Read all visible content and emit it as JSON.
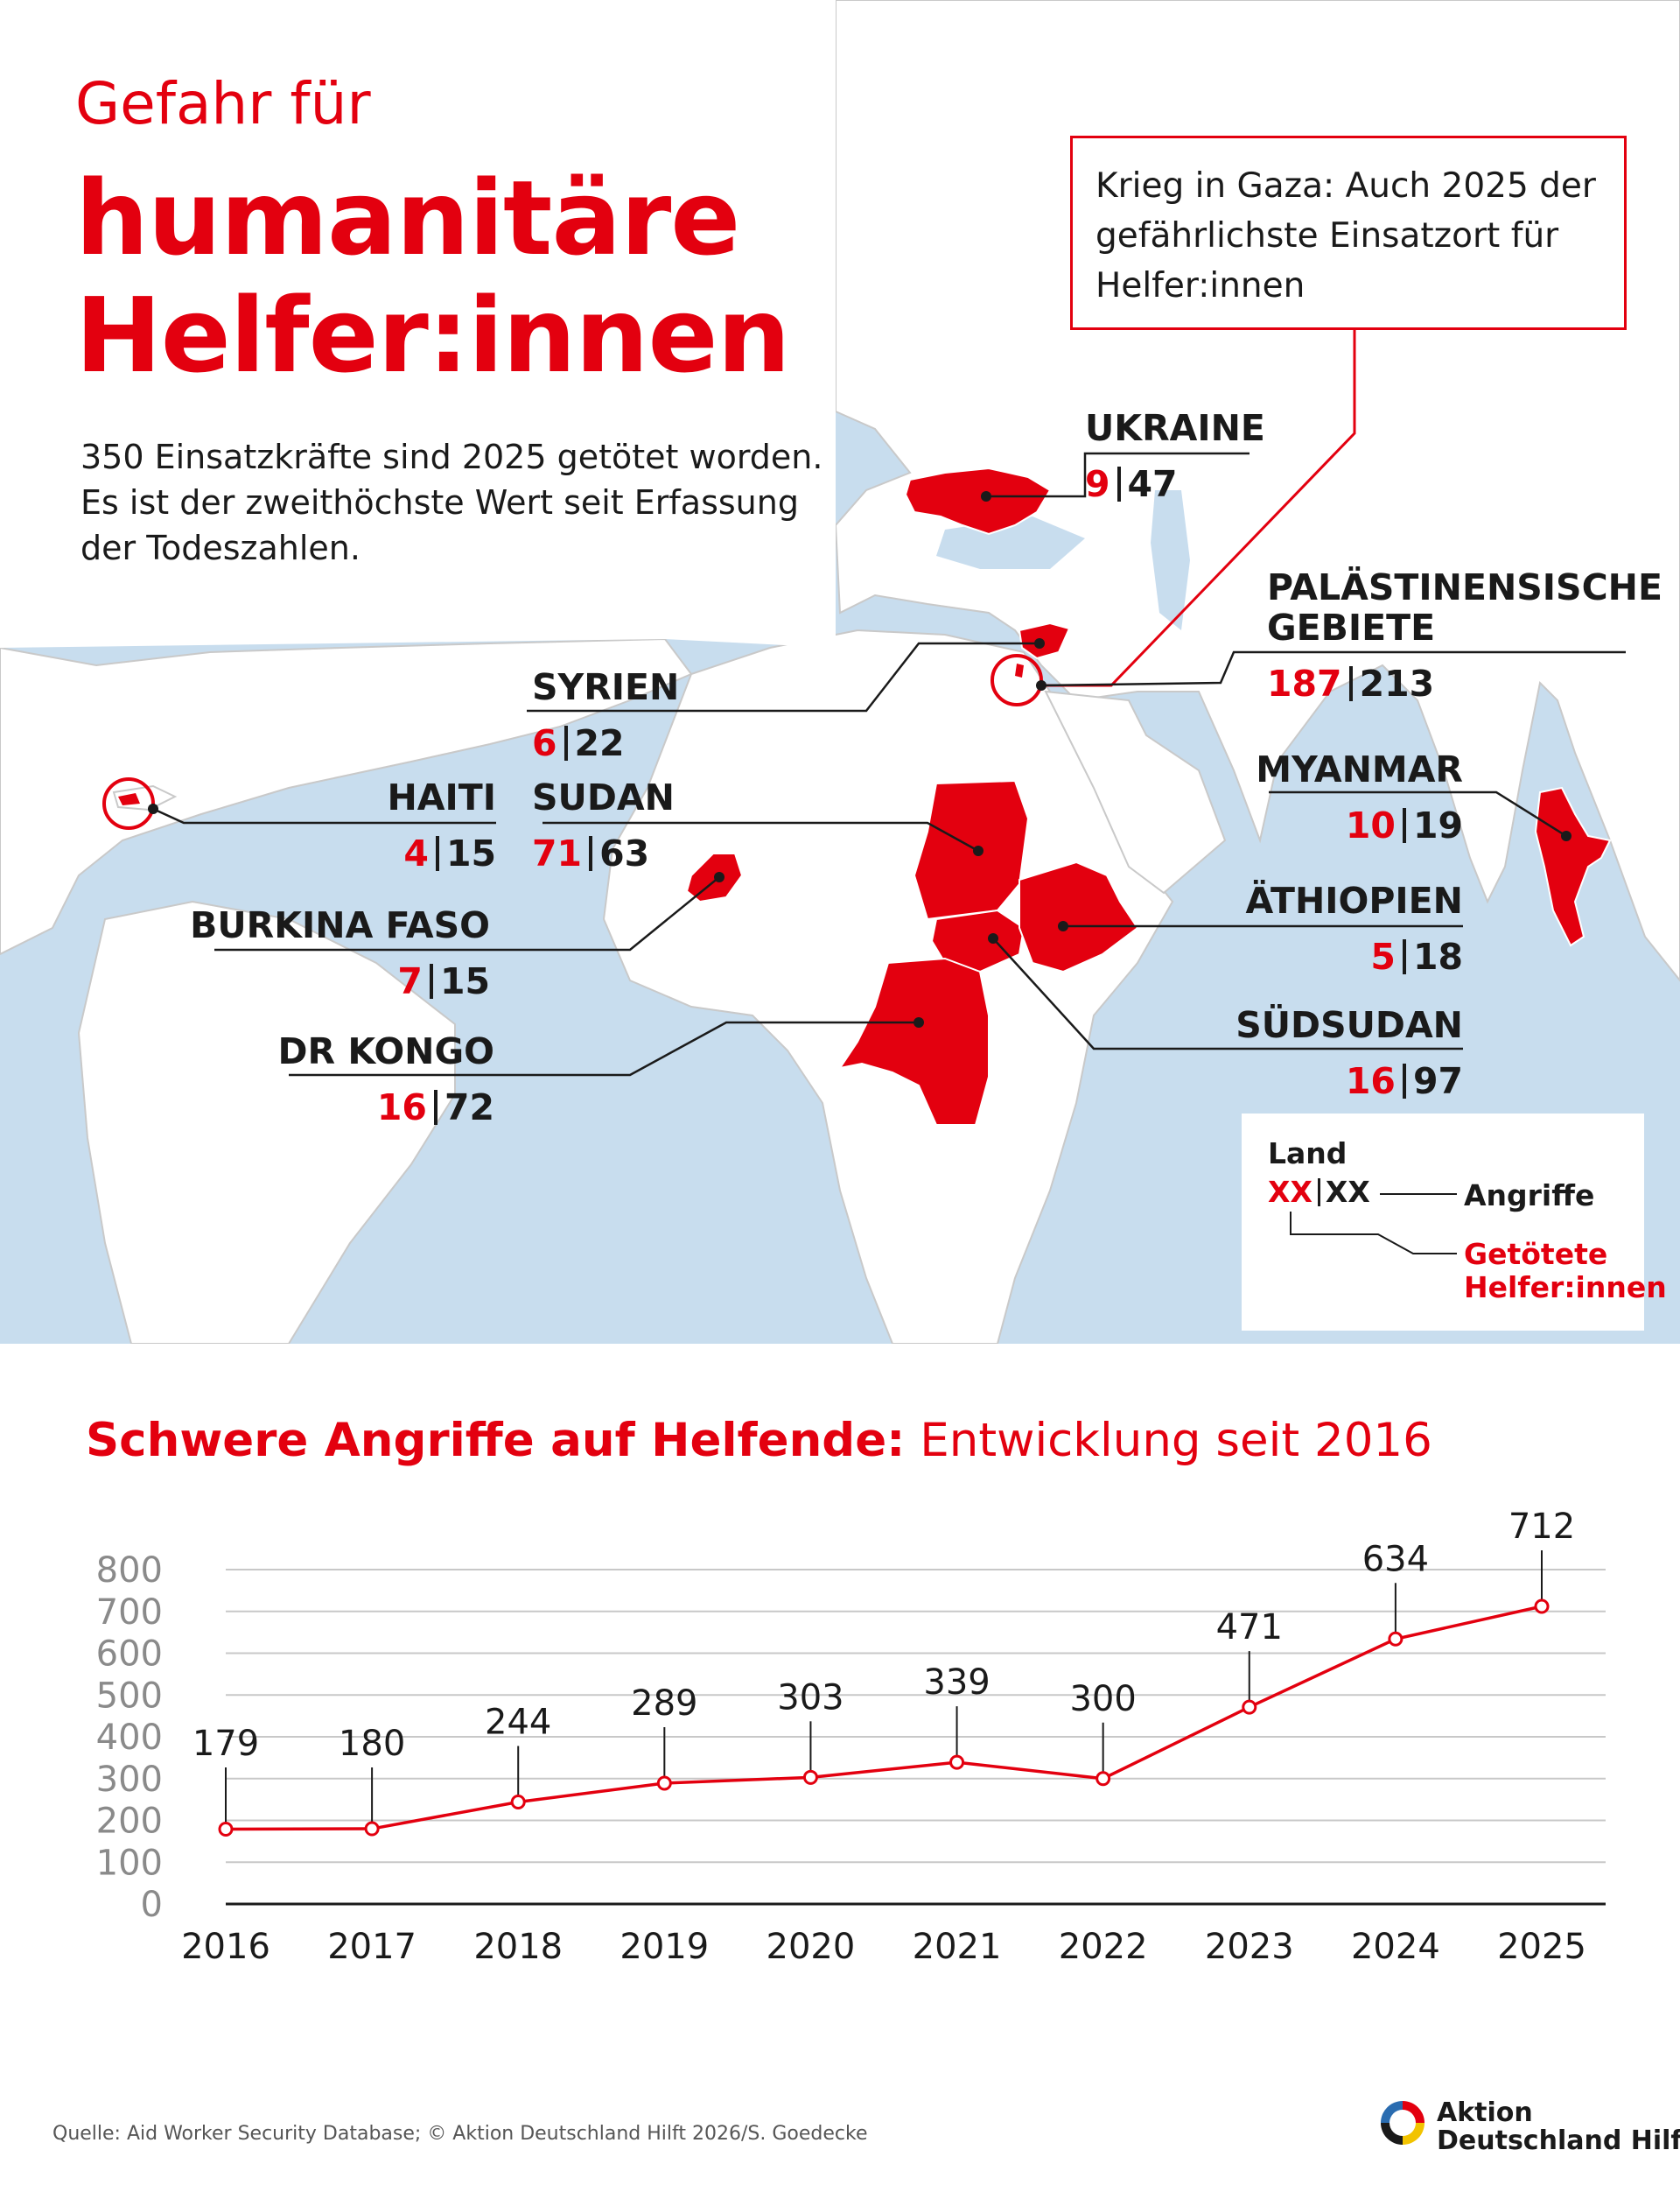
{
  "header": {
    "subtitle": "Gefahr für",
    "title_line1": "humanitäre",
    "title_line2": "Helfer:innen",
    "intro": "350 Einsatzkräfte sind 2025 getötet worden. Es ist der zweithöchste Wert seit Erfassung der Todeszahlen."
  },
  "callout": {
    "text": "Krieg in Gaza: Auch 2025 der gefährlichste Einsatzort für Helfer:innen"
  },
  "countries": [
    {
      "name": "UKRAINE",
      "killed": "9",
      "attacks": "47"
    },
    {
      "name": "PALÄSTINENSISCHE",
      "name2": "GEBIETE",
      "killed": "187",
      "attacks": "213"
    },
    {
      "name": "SYRIEN",
      "killed": "6",
      "attacks": "22"
    },
    {
      "name": "HAITI",
      "killed": "4",
      "attacks": "15"
    },
    {
      "name": "SUDAN",
      "killed": "71",
      "attacks": "63"
    },
    {
      "name": "MYANMAR",
      "killed": "10",
      "attacks": "19"
    },
    {
      "name": "BURKINA FASO",
      "killed": "7",
      "attacks": "15"
    },
    {
      "name": "ÄTHIOPIEN",
      "killed": "5",
      "attacks": "18"
    },
    {
      "name": "DR KONGO",
      "killed": "16",
      "attacks": "72"
    },
    {
      "name": "SÜDSUDAN",
      "killed": "16",
      "attacks": "97"
    }
  ],
  "legend": {
    "land": "Land",
    "killed_placeholder": "XX",
    "attacks_placeholder": "XX",
    "attacks_label": "Angriffe",
    "killed_label": "Getötete Helfer:innen"
  },
  "chart_title": {
    "bold": "Schwere Angriffe auf Helfende:",
    "rest": " Entwicklung seit 2016"
  },
  "chart_data": {
    "type": "line",
    "title": "Schwere Angriffe auf Helfende: Entwicklung seit 2016",
    "categories": [
      "2016",
      "2017",
      "2018",
      "2019",
      "2020",
      "2021",
      "2022",
      "2023",
      "2024",
      "2025"
    ],
    "values": [
      179,
      180,
      244,
      289,
      303,
      339,
      300,
      471,
      634,
      712
    ],
    "ylim": [
      0,
      800
    ],
    "yticks": [
      0,
      100,
      200,
      300,
      400,
      500,
      600,
      700,
      800
    ],
    "grid": true,
    "line_color": "#e3000f"
  },
  "footer": {
    "source": "Quelle: Aid Worker Security Database; © Aktion Deutschland Hilft 2026/S. Goedecke",
    "logo_line1": "Aktion",
    "logo_line2": "Deutschland Hilft"
  },
  "colors": {
    "accent": "#e3000f",
    "sea": "#c8ddee",
    "land": "#ffffff"
  }
}
